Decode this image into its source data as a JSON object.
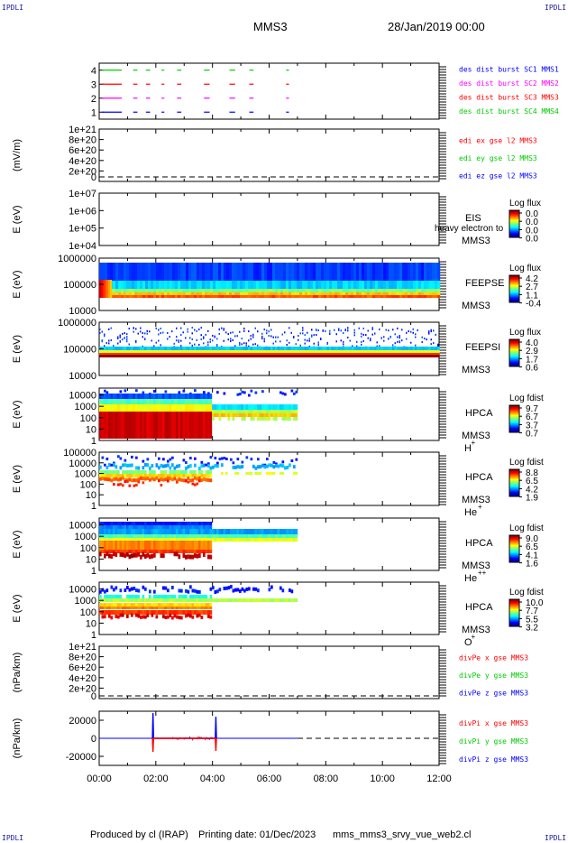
{
  "corners": {
    "top_left": "IPDLI",
    "top_right": "IPDLI",
    "bottom_left": "IPDLI",
    "bottom_right": "IPDLI"
  },
  "header": {
    "title": "MMS3",
    "date": "28/Jan/2019 00:00"
  },
  "footer": {
    "produced": "Produced by cl (IRAP)",
    "printing": "Printing date: 01/Dec/2023",
    "script": "mms_mms3_srvy_vue_web2.cl"
  },
  "colors": {
    "mms1": "#0000ff",
    "mms2": "#ff0000",
    "mms3": "#ff00ff",
    "mms4": "#00cc00",
    "x": "#ff0000",
    "y": "#00cc00",
    "z": "#0000ff"
  },
  "chart_data": [
    {
      "type": "line",
      "panel": "burst",
      "ytick_labels": [
        "4",
        "3",
        "2",
        "1"
      ],
      "ylim": [
        0.5,
        4.5
      ],
      "legend": [
        {
          "text": "des dist burst SC1 MMS1",
          "color": "#0000ff"
        },
        {
          "text": "des dist burst SC2 MMS2",
          "color": "#ff00ff"
        },
        {
          "text": "des dist burst SC3 MMS3",
          "color": "#ff0000"
        },
        {
          "text": "des dist burst SC4 MMS4",
          "color": "#00cc00"
        }
      ],
      "series": [
        {
          "level": 4,
          "color": "#00cc00",
          "segments": [
            [
              0.1,
              0.8
            ],
            [
              1.2,
              1.35
            ],
            [
              1.65,
              1.8
            ],
            [
              2.2,
              2.3
            ],
            [
              2.75,
              2.9
            ],
            [
              3.7,
              3.9
            ],
            [
              4.6,
              4.8
            ],
            [
              5.3,
              5.45
            ],
            [
              6.6,
              6.7
            ]
          ]
        },
        {
          "level": 3,
          "color": "#ff0000",
          "segments": [
            [
              0.1,
              0.8
            ],
            [
              1.2,
              1.35
            ],
            [
              1.65,
              1.8
            ],
            [
              2.2,
              2.3
            ],
            [
              2.75,
              2.9
            ],
            [
              3.7,
              3.9
            ],
            [
              4.6,
              4.8
            ],
            [
              5.3,
              5.45
            ],
            [
              6.6,
              6.7
            ]
          ]
        },
        {
          "level": 2,
          "color": "#ff00ff",
          "segments": [
            [
              0.1,
              0.8
            ],
            [
              1.2,
              1.35
            ],
            [
              1.65,
              1.8
            ],
            [
              2.2,
              2.3
            ],
            [
              2.75,
              2.9
            ],
            [
              3.7,
              3.9
            ],
            [
              4.6,
              4.8
            ],
            [
              5.3,
              5.45
            ],
            [
              6.6,
              6.7
            ]
          ]
        },
        {
          "level": 1,
          "color": "#0000ff",
          "segments": [
            [
              0.1,
              0.8
            ],
            [
              1.2,
              1.35
            ],
            [
              1.65,
              1.8
            ],
            [
              2.2,
              2.3
            ],
            [
              2.75,
              2.9
            ],
            [
              3.7,
              3.9
            ],
            [
              4.6,
              4.8
            ],
            [
              5.3,
              5.45
            ],
            [
              6.6,
              6.7
            ]
          ]
        }
      ]
    },
    {
      "type": "line",
      "panel": "edi",
      "ylabel": "(mV/m)",
      "ytick_labels": [
        "1e+21",
        "8e+20",
        "6e+20",
        "4e+20",
        "2e+20",
        "0"
      ],
      "ylim": [
        0,
        1e+21
      ],
      "legend": [
        {
          "text": "edi ex gse l2 MMS3",
          "color": "#ff0000"
        },
        {
          "text": "edi ey gse l2 MMS3",
          "color": "#00cc00"
        },
        {
          "text": "edi ez gse l2 MMS3",
          "color": "#0000ff"
        }
      ]
    },
    {
      "type": "heatmap",
      "panel": "eis",
      "ylabel": "E (eV)",
      "ytick_labels": [
        "1e+07",
        "1e+06",
        "1e+05",
        "1e+04"
      ],
      "ylim": [
        10000,
        10000000
      ],
      "log_y": true,
      "labels": [
        "EIS",
        "MMS3"
      ],
      "overlap_text": "heavy electron to",
      "colorbar": {
        "title": "Log flux",
        "ticks": [
          "0.0",
          "0.0",
          "0.0",
          "0.0"
        ]
      }
    },
    {
      "type": "heatmap",
      "panel": "feepse",
      "ylabel": "E (eV)",
      "ytick_labels": [
        "1000000",
        "100000",
        "10000"
      ],
      "ylim": [
        10000,
        1000000
      ],
      "log_y": true,
      "labels": [
        "FEEPSE",
        "MMS3"
      ],
      "colorbar": {
        "title": "Log flux",
        "ticks": [
          "4.2",
          "2.7",
          "1.1",
          "-0.4"
        ]
      }
    },
    {
      "type": "heatmap",
      "panel": "feepsi",
      "ylabel": "E (eV)",
      "ytick_labels": [
        "1000000",
        "100000",
        "10000"
      ],
      "ylim": [
        10000,
        1000000
      ],
      "log_y": true,
      "labels": [
        "FEEPSI",
        "MMS3"
      ],
      "colorbar": {
        "title": "Log flux",
        "ticks": [
          "4.0",
          "2.9",
          "1.7",
          "0.6"
        ]
      }
    },
    {
      "type": "heatmap",
      "panel": "hpca_h",
      "ylabel": "E (eV)",
      "ytick_labels": [
        "10000",
        "1000",
        "100",
        "10",
        "1"
      ],
      "ylim": [
        1,
        40000
      ],
      "log_y": true,
      "labels": [
        "HPCA",
        "MMS3",
        "H",
        "+"
      ],
      "colorbar": {
        "title": "Log fdist",
        "ticks": [
          "9.7",
          "6.7",
          "3.7",
          "0.7"
        ]
      }
    },
    {
      "type": "heatmap",
      "panel": "hpca_he",
      "ylabel": "E (eV)",
      "ytick_labels": [
        "100000",
        "10000",
        "1000",
        "100",
        "10",
        "1"
      ],
      "ylim": [
        1,
        100000
      ],
      "log_y": true,
      "labels": [
        "HPCA",
        "MMS3",
        "He",
        "+"
      ],
      "colorbar": {
        "title": "Log fdist",
        "ticks": [
          "8.8",
          "6.5",
          "4.2",
          "1.9"
        ]
      }
    },
    {
      "type": "heatmap",
      "panel": "hpca_hepp",
      "ylabel": "E (eV)",
      "ytick_labels": [
        "10000",
        "1000",
        "100",
        "10",
        "1"
      ],
      "ylim": [
        1,
        40000
      ],
      "log_y": true,
      "labels": [
        "HPCA",
        "MMS3",
        "He",
        "++"
      ],
      "colorbar": {
        "title": "Log fdist",
        "ticks": [
          "9.0",
          "6.5",
          "4.1",
          "1.6"
        ]
      }
    },
    {
      "type": "heatmap",
      "panel": "hpca_o",
      "ylabel": "E (eV)",
      "ytick_labels": [
        "10000",
        "1000",
        "100",
        "10",
        "1"
      ],
      "ylim": [
        1,
        40000
      ],
      "log_y": true,
      "labels": [
        "HPCA",
        "MMS3",
        "O",
        "+"
      ],
      "colorbar": {
        "title": "Log fdist",
        "ticks": [
          "10.0",
          "7.7",
          "5.5",
          "3.2"
        ]
      }
    },
    {
      "type": "line",
      "panel": "divpe",
      "ylabel": "(nPa/km)",
      "ytick_labels": [
        "1e+21",
        "8e+20",
        "6e+20",
        "4e+20",
        "2e+20",
        "0"
      ],
      "ylim": [
        0,
        1e+21
      ],
      "legend": [
        {
          "text": "divPe x gse MMS3",
          "color": "#ff0000"
        },
        {
          "text": "divPe y gse MMS3",
          "color": "#00cc00"
        },
        {
          "text": "divPe z gse MMS3",
          "color": "#0000ff"
        }
      ]
    },
    {
      "type": "line",
      "panel": "divpi",
      "ylabel": "(nPa/km)",
      "ytick_labels": [
        "20000",
        "0",
        "-20000"
      ],
      "ylim": [
        -30000,
        30000
      ],
      "x_labels": [
        "00:00",
        "02:00",
        "04:00",
        "06:00",
        "08:00",
        "10:00",
        "12:00"
      ],
      "xlim": [
        0,
        12
      ],
      "legend": [
        {
          "text": "divPi x gse MMS3",
          "color": "#ff0000"
        },
        {
          "text": "divPi y gse MMS3",
          "color": "#00cc00"
        },
        {
          "text": "divPi z gse MMS3",
          "color": "#0000ff"
        }
      ],
      "series": [
        {
          "name": "",
          "color": "#0000ff",
          "x": [
            1.88,
            1.9,
            1.92,
            4.1,
            4.12,
            4.14
          ],
          "y": [
            0,
            28000,
            0,
            0,
            24000,
            0
          ]
        },
        {
          "name": "",
          "color": "#ff0000",
          "x": [
            1.88,
            1.9,
            1.92,
            4.1,
            4.12,
            4.14
          ],
          "y": [
            0,
            -15000,
            0,
            0,
            -14000,
            0
          ]
        }
      ]
    }
  ]
}
